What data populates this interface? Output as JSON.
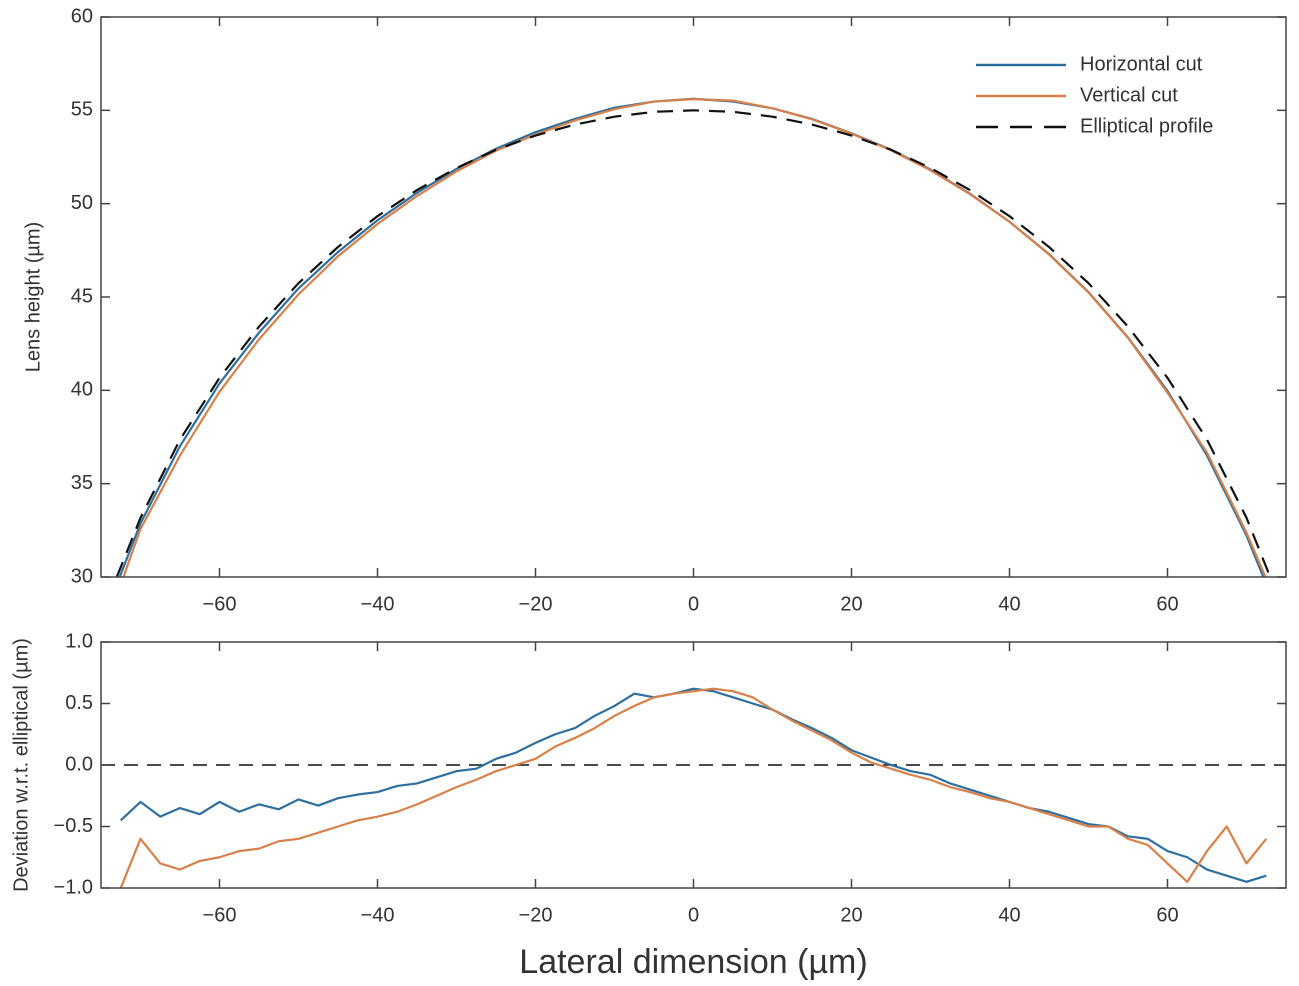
{
  "chart_data": [
    {
      "type": "line",
      "ylabel": "Lens height (µm)",
      "x": [
        -73,
        -70,
        -65,
        -60,
        -55,
        -50,
        -45,
        -40,
        -35,
        -30,
        -25,
        -20,
        -15,
        -10,
        -5,
        0,
        5,
        10,
        15,
        20,
        25,
        30,
        35,
        40,
        45,
        50,
        55,
        60,
        65,
        70,
        73
      ],
      "series": [
        {
          "name": "Horizontal cut",
          "color": "#2e6f9e",
          "style": "solid",
          "values": [
            29.6,
            32.87,
            37.01,
            40.37,
            43.09,
            45.46,
            47.41,
            49.11,
            50.58,
            51.86,
            52.94,
            53.83,
            54.54,
            55.14,
            55.47,
            55.62,
            55.47,
            55.11,
            54.54,
            53.77,
            52.89,
            51.83,
            50.53,
            49.03,
            47.3,
            45.26,
            42.83,
            39.97,
            36.51,
            32.22,
            29.1
          ]
        },
        {
          "name": "Vertical cut",
          "color": "#d8804a",
          "style": "solid",
          "values": [
            29.0,
            32.57,
            36.51,
            39.92,
            42.73,
            45.14,
            47.18,
            48.91,
            50.41,
            51.73,
            52.84,
            53.7,
            54.46,
            55.06,
            55.47,
            55.6,
            55.52,
            55.11,
            54.52,
            53.75,
            52.86,
            51.79,
            50.51,
            49.03,
            47.28,
            45.24,
            42.81,
            39.87,
            36.66,
            32.37,
            29.4
          ]
        },
        {
          "name": "Elliptical profile",
          "color": "#111111",
          "style": "dashed",
          "values": [
            30.0,
            33.17,
            37.36,
            40.67,
            43.41,
            45.74,
            47.68,
            49.33,
            50.73,
            51.91,
            52.89,
            53.65,
            54.24,
            54.66,
            54.92,
            55.0,
            54.92,
            54.66,
            54.24,
            53.65,
            52.89,
            51.91,
            50.73,
            49.33,
            47.68,
            45.74,
            43.41,
            40.67,
            37.36,
            33.17,
            30.0
          ]
        }
      ],
      "xlim": [
        -75,
        75
      ],
      "xticks": [
        {
          "value": -60,
          "label": "−60"
        },
        {
          "value": -40,
          "label": "−40"
        },
        {
          "value": -20,
          "label": "−20"
        },
        0,
        20,
        40,
        60
      ],
      "ylim": [
        30,
        60
      ],
      "yticks": [
        30,
        35,
        40,
        45,
        50,
        55,
        60
      ],
      "legend": "upper right"
    },
    {
      "type": "line",
      "ylabel": "Deviation w.r.t. elliptical (µm)",
      "xlabel": "Lateral dimension (µm)",
      "x": [
        -72.5,
        -70,
        -67.5,
        -65,
        -62.5,
        -60,
        -57.5,
        -55,
        -52.5,
        -50,
        -47.5,
        -45,
        -42.5,
        -40,
        -37.5,
        -35,
        -32.5,
        -30,
        -27.5,
        -25,
        -22.5,
        -20,
        -17.5,
        -15,
        -12.5,
        -10,
        -7.5,
        -5,
        -2.5,
        0,
        2.5,
        5,
        7.5,
        10,
        12.5,
        15,
        17.5,
        20,
        22.5,
        25,
        27.5,
        30,
        32.5,
        35,
        37.5,
        40,
        42.5,
        45,
        47.5,
        50,
        52.5,
        55,
        57.5,
        60,
        62.5,
        65,
        67.5,
        70,
        72.5
      ],
      "series": [
        {
          "color": "#2e6f9e",
          "values": [
            -0.45,
            -0.3,
            -0.42,
            -0.35,
            -0.4,
            -0.3,
            -0.38,
            -0.32,
            -0.36,
            -0.28,
            -0.33,
            -0.27,
            -0.24,
            -0.22,
            -0.17,
            -0.15,
            -0.1,
            -0.05,
            -0.03,
            0.05,
            0.1,
            0.18,
            0.25,
            0.3,
            0.4,
            0.48,
            0.58,
            0.55,
            0.58,
            0.62,
            0.6,
            0.55,
            0.5,
            0.45,
            0.37,
            0.3,
            0.22,
            0.12,
            0.06,
            0.0,
            -0.05,
            -0.08,
            -0.15,
            -0.2,
            -0.25,
            -0.3,
            -0.35,
            -0.38,
            -0.43,
            -0.48,
            -0.5,
            -0.58,
            -0.6,
            -0.7,
            -0.75,
            -0.85,
            -0.9,
            -0.95,
            -0.9
          ]
        },
        {
          "color": "#d8804a",
          "values": [
            -1.0,
            -0.6,
            -0.8,
            -0.85,
            -0.78,
            -0.75,
            -0.7,
            -0.68,
            -0.62,
            -0.6,
            -0.55,
            -0.5,
            -0.45,
            -0.42,
            -0.38,
            -0.32,
            -0.25,
            -0.18,
            -0.12,
            -0.05,
            0.0,
            0.05,
            0.15,
            0.22,
            0.3,
            0.4,
            0.48,
            0.55,
            0.58,
            0.6,
            0.62,
            0.6,
            0.55,
            0.45,
            0.36,
            0.28,
            0.2,
            0.1,
            0.02,
            -0.03,
            -0.08,
            -0.12,
            -0.18,
            -0.22,
            -0.27,
            -0.3,
            -0.35,
            -0.4,
            -0.45,
            -0.5,
            -0.5,
            -0.6,
            -0.65,
            -0.8,
            -0.95,
            -0.7,
            -0.5,
            -0.8,
            -0.6
          ]
        }
      ],
      "reference_line": 0,
      "xlim": [
        -75,
        75
      ],
      "xticks": [
        {
          "value": -60,
          "label": "−60"
        },
        {
          "value": -40,
          "label": "−40"
        },
        {
          "value": -20,
          "label": "−20"
        },
        0,
        20,
        40,
        60
      ],
      "ylim": [
        -1,
        1
      ],
      "yticks": [
        {
          "value": -1,
          "label": "−1.0"
        },
        {
          "value": -0.5,
          "label": "−0.5"
        },
        {
          "value": 0,
          "label": "0.0"
        },
        0.5,
        {
          "value": 1,
          "label": "1.0"
        }
      ]
    }
  ]
}
